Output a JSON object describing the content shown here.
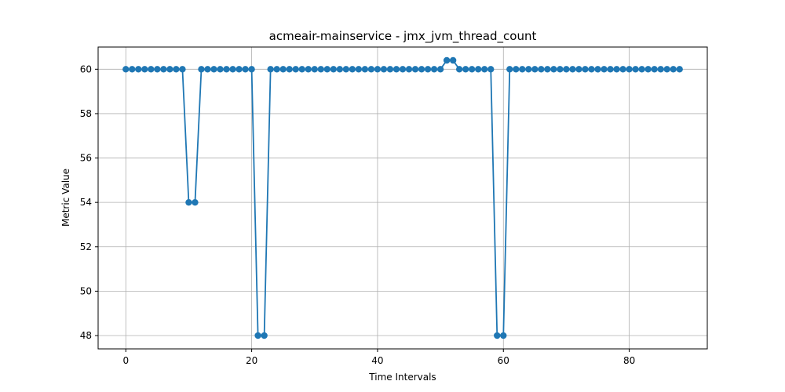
{
  "chart_data": {
    "type": "line",
    "title": "acmeair-mainservice - jmx_jvm_thread_count",
    "xlabel": "Time Intervals",
    "ylabel": "Metric Value",
    "xlim": [
      -4.4,
      92.4
    ],
    "ylim": [
      47.4,
      61.0
    ],
    "xticks": [
      0,
      20,
      40,
      60,
      80
    ],
    "yticks": [
      48,
      50,
      52,
      54,
      56,
      58,
      60
    ],
    "grid": true,
    "marker": "circle",
    "color": "#1f77b4",
    "x": [
      0,
      1,
      2,
      3,
      4,
      5,
      6,
      7,
      8,
      9,
      10,
      11,
      12,
      13,
      14,
      15,
      16,
      17,
      18,
      19,
      20,
      21,
      22,
      23,
      24,
      25,
      26,
      27,
      28,
      29,
      30,
      31,
      32,
      33,
      34,
      35,
      36,
      37,
      38,
      39,
      40,
      41,
      42,
      43,
      44,
      45,
      46,
      47,
      48,
      49,
      50,
      51,
      52,
      53,
      54,
      55,
      56,
      57,
      58,
      59,
      60,
      61,
      62,
      63,
      64,
      65,
      66,
      67,
      68,
      69,
      70,
      71,
      72,
      73,
      74,
      75,
      76,
      77,
      78,
      79,
      80,
      81,
      82,
      83,
      84,
      85,
      86,
      87,
      88
    ],
    "values": [
      60,
      60,
      60,
      60,
      60,
      60,
      60,
      60,
      60,
      60,
      54,
      54,
      60,
      60,
      60,
      60,
      60,
      60,
      60,
      60,
      60,
      48,
      48,
      60,
      60,
      60,
      60,
      60,
      60,
      60,
      60,
      60,
      60,
      60,
      60,
      60,
      60,
      60,
      60,
      60,
      60,
      60,
      60,
      60,
      60,
      60,
      60,
      60,
      60,
      60,
      60,
      60.4,
      60.4,
      60,
      60,
      60,
      60,
      60,
      60,
      48,
      48,
      60,
      60,
      60,
      60,
      60,
      60,
      60,
      60,
      60,
      60,
      60,
      60,
      60,
      60,
      60,
      60,
      60,
      60,
      60,
      60,
      60,
      60,
      60,
      60,
      60,
      60,
      60,
      60
    ]
  }
}
